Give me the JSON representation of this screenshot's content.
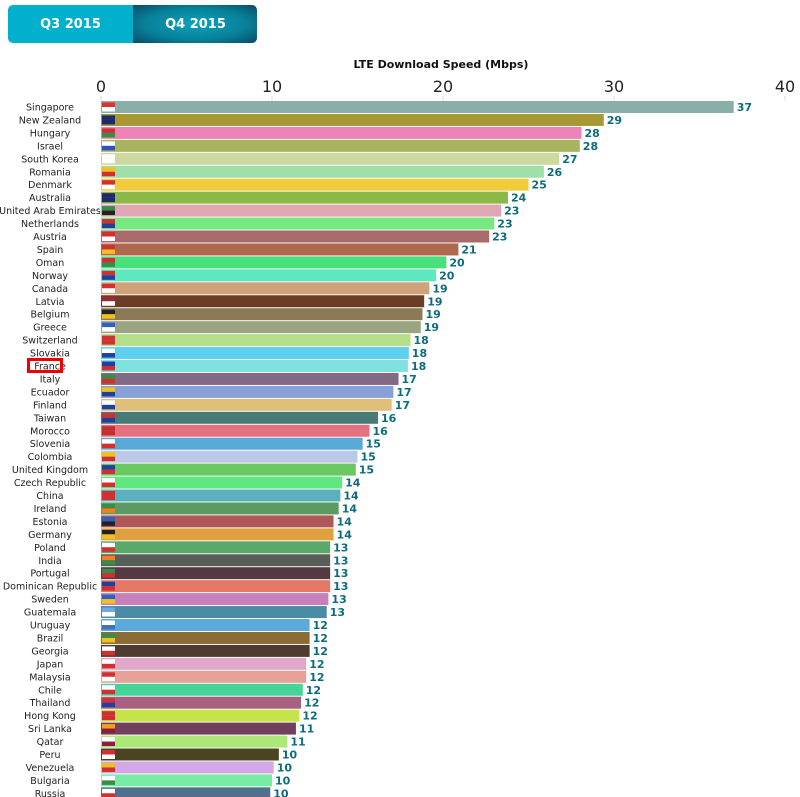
{
  "tabs": [
    {
      "label": "Q3 2015",
      "active": false
    },
    {
      "label": "Q4 2015",
      "active": true
    }
  ],
  "highlighted": "France",
  "chart_data": {
    "type": "bar",
    "orientation": "horizontal",
    "title": "LTE Download Speed (Mbps)",
    "xlim": [
      0,
      40
    ],
    "xticks": [
      0,
      10,
      20,
      30,
      40
    ],
    "axis_position": "top",
    "categories": [
      "Singapore",
      "New Zealand",
      "Hungary",
      "Israel",
      "South Korea",
      "Romania",
      "Denmark",
      "Australia",
      "United Arab Emirates",
      "Netherlands",
      "Austria",
      "Spain",
      "Oman",
      "Norway",
      "Canada",
      "Latvia",
      "Belgium",
      "Greece",
      "Switzerland",
      "Slovakia",
      "France",
      "Italy",
      "Ecuador",
      "Finland",
      "Taiwan",
      "Morocco",
      "Slovenia",
      "Colombia",
      "United Kingdom",
      "Czech Republic",
      "China",
      "Ireland",
      "Estonia",
      "Germany",
      "Poland",
      "India",
      "Portugal",
      "Dominican Republic",
      "Sweden",
      "Guatemala",
      "Uruguay",
      "Brazil",
      "Georgia",
      "Japan",
      "Malaysia",
      "Chile",
      "Thailand",
      "Hong Kong",
      "Sri Lanka",
      "Qatar",
      "Peru",
      "Venezuela",
      "Bulgaria",
      "Russia"
    ],
    "values": [
      37.0,
      29.4,
      28.1,
      28.0,
      26.8,
      25.9,
      25.0,
      23.8,
      23.4,
      23.0,
      22.7,
      20.9,
      20.2,
      19.6,
      19.2,
      18.9,
      18.8,
      18.7,
      18.1,
      18.0,
      17.95,
      17.4,
      17.1,
      17.0,
      16.2,
      15.7,
      15.3,
      15.0,
      14.9,
      14.1,
      14.0,
      13.9,
      13.6,
      13.6,
      13.4,
      13.4,
      13.4,
      13.4,
      13.3,
      13.2,
      12.2,
      12.2,
      12.2,
      12.0,
      12.0,
      11.8,
      11.7,
      11.6,
      11.4,
      10.9,
      10.4,
      10.1,
      10.0,
      9.9
    ],
    "labels": [
      "37",
      "29",
      "28",
      "28",
      "27",
      "26",
      "25",
      "24",
      "23",
      "23",
      "23",
      "21",
      "20",
      "20",
      "19",
      "19",
      "19",
      "19",
      "18",
      "18",
      "18",
      "17",
      "17",
      "17",
      "16",
      "16",
      "15",
      "15",
      "15",
      "14",
      "14",
      "14",
      "14",
      "14",
      "13",
      "13",
      "13",
      "13",
      "13",
      "13",
      "12",
      "12",
      "12",
      "12",
      "12",
      "12",
      "12",
      "12",
      "11",
      "11",
      "10",
      "10",
      "10",
      "10"
    ],
    "colors": [
      "#8aafa8",
      "#a89834",
      "#ee84b6",
      "#a9b45e",
      "#cdd7a0",
      "#9fe0aa",
      "#f0cc3a",
      "#8cb848",
      "#e0a6b4",
      "#78e880",
      "#a86a6a",
      "#b0684c",
      "#47e07c",
      "#5de8c0",
      "#d0a27a",
      "#6a3d24",
      "#8a7a58",
      "#9aa480",
      "#b4de88",
      "#5cd0ee",
      "#80e2e0",
      "#826a86",
      "#86a0d8",
      "#e0c078",
      "#4a7a78",
      "#e47080",
      "#5aa8d8",
      "#bcc8e8",
      "#6ac860",
      "#60e880",
      "#5ab0c0",
      "#5c9a64",
      "#b05858",
      "#e0a040",
      "#5aa86a",
      "#585e58",
      "#543842",
      "#e47864",
      "#c880bc",
      "#4a8ca4",
      "#5caadc",
      "#8a6c34",
      "#4e3c30",
      "#e2a8cc",
      "#e6a098",
      "#46d498",
      "#a86080",
      "#c4e44a",
      "#72405e",
      "#ace878",
      "#4a4420",
      "#d4a8e8",
      "#78eca4",
      "#50708c"
    ],
    "flags": [
      [
        "#e03030",
        "#ffffff"
      ],
      [
        "#1e2a6a",
        "#1e2a6a"
      ],
      [
        "#d03030",
        "#3a8a4a"
      ],
      [
        "#ffffff",
        "#3050c0"
      ],
      [
        "#ffffff",
        "#ffffff"
      ],
      [
        "#f0c020",
        "#d03030"
      ],
      [
        "#d03030",
        "#ffffff"
      ],
      [
        "#1e2a6a",
        "#1e2a6a"
      ],
      [
        "#3a8a4a",
        "#222222"
      ],
      [
        "#d03030",
        "#2040a0"
      ],
      [
        "#d03030",
        "#ffffff"
      ],
      [
        "#d03030",
        "#f0c020"
      ],
      [
        "#d03030",
        "#3a8a4a"
      ],
      [
        "#d03030",
        "#2040a0"
      ],
      [
        "#d03030",
        "#ffffff"
      ],
      [
        "#9a2a3a",
        "#ffffff"
      ],
      [
        "#222222",
        "#f0c020"
      ],
      [
        "#3060c0",
        "#ffffff"
      ],
      [
        "#d03030",
        "#d03030"
      ],
      [
        "#ffffff",
        "#2040a0"
      ],
      [
        "#2040a0",
        "#d03030"
      ],
      [
        "#3a8a4a",
        "#d03030"
      ],
      [
        "#f0c020",
        "#2040a0"
      ],
      [
        "#ffffff",
        "#2040a0"
      ],
      [
        "#d03030",
        "#2040a0"
      ],
      [
        "#c03030",
        "#c03030"
      ],
      [
        "#ffffff",
        "#d03030"
      ],
      [
        "#f0c020",
        "#d03030"
      ],
      [
        "#2040a0",
        "#d03030"
      ],
      [
        "#ffffff",
        "#d03030"
      ],
      [
        "#d03030",
        "#d03030"
      ],
      [
        "#3a8a4a",
        "#f08020"
      ],
      [
        "#3060c0",
        "#222222"
      ],
      [
        "#222222",
        "#f0c020"
      ],
      [
        "#ffffff",
        "#d03030"
      ],
      [
        "#f08020",
        "#3a8a4a"
      ],
      [
        "#3a8a4a",
        "#d03030"
      ],
      [
        "#2040a0",
        "#d03030"
      ],
      [
        "#3060c0",
        "#f0c020"
      ],
      [
        "#70a8e0",
        "#ffffff"
      ],
      [
        "#ffffff",
        "#4070c0"
      ],
      [
        "#3a8a4a",
        "#f0c020"
      ],
      [
        "#ffffff",
        "#d03030"
      ],
      [
        "#ffffff",
        "#d03030"
      ],
      [
        "#d03030",
        "#ffffff"
      ],
      [
        "#ffffff",
        "#d03030"
      ],
      [
        "#d03030",
        "#2040a0"
      ],
      [
        "#d03030",
        "#d03030"
      ],
      [
        "#f0a020",
        "#8a2030"
      ],
      [
        "#ffffff",
        "#8a2040"
      ],
      [
        "#d03030",
        "#ffffff"
      ],
      [
        "#f0c020",
        "#d03030"
      ],
      [
        "#ffffff",
        "#3a8a4a"
      ],
      [
        "#ffffff",
        "#d03030"
      ]
    ],
    "value_label_color": "#0c6c7c",
    "grid": false
  }
}
